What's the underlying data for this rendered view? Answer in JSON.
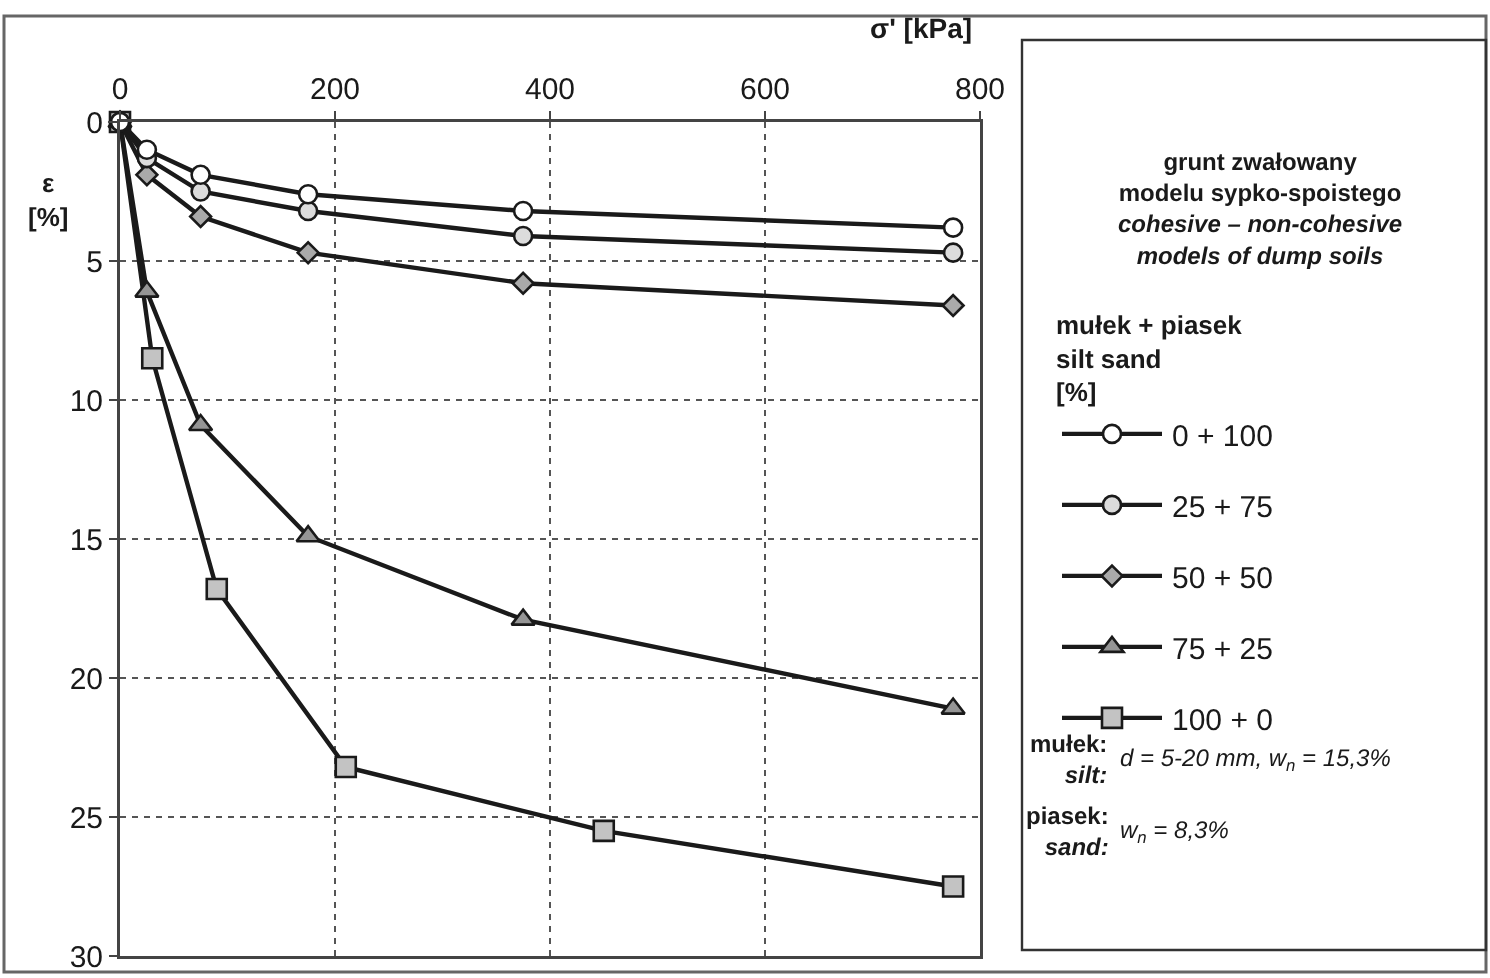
{
  "chart_data": {
    "type": "line",
    "title": "grunt zwałowany\nmodelu sypko-spoistego\ncohesive – non-cohesive\nmodels of dump soils",
    "xlabel": "σ' [kPa]",
    "ylabel": "ε\n[%]",
    "legend_title": "mułek + piasek\nsilt sand\n[%]",
    "xlim": [
      0,
      800
    ],
    "xticks": [
      0,
      200,
      400,
      600,
      800
    ],
    "ylim": [
      30,
      0
    ],
    "yticks": [
      0,
      5,
      10,
      15,
      20,
      25,
      30
    ],
    "grid": true,
    "legend": "right",
    "line_style": "solid",
    "series": [
      {
        "name": "0 + 100",
        "color": "#ffffff",
        "marker": "circle",
        "x": [
          0,
          25,
          75,
          175,
          375,
          775
        ],
        "values": [
          0,
          1,
          1.9,
          2.6,
          3.2,
          3.8
        ]
      },
      {
        "name": "25 + 75",
        "color": "#dcdcdc",
        "marker": "circle",
        "x": [
          0,
          25,
          75,
          175,
          375,
          775
        ],
        "values": [
          0,
          1.3,
          2.5,
          3.2,
          4.1,
          4.7
        ]
      },
      {
        "name": "50 + 50",
        "color": "#aaaaaa",
        "marker": "diamond",
        "x": [
          0,
          25,
          75,
          175,
          375,
          775
        ],
        "values": [
          0,
          1.9,
          3.4,
          4.7,
          5.8,
          6.6
        ]
      },
      {
        "name": "75 + 25",
        "color": "#959595",
        "marker": "triangle",
        "x": [
          0,
          25,
          75,
          175,
          375,
          775
        ],
        "values": [
          0,
          6.1,
          10.9,
          14.9,
          17.9,
          21.1
        ]
      },
      {
        "name": "100 + 0",
        "color": "#c3c3c3",
        "marker": "square",
        "x": [
          0,
          30,
          90,
          210,
          450,
          775
        ],
        "values": [
          0,
          8.5,
          16.8,
          23.2,
          25.5,
          27.5
        ]
      }
    ],
    "annotations": [
      "mułek: silt: d = 5-20 mm, w$_{n}$ = 15,3%",
      "piasek: sand: w$_{n}$ = 8,3%"
    ]
  }
}
